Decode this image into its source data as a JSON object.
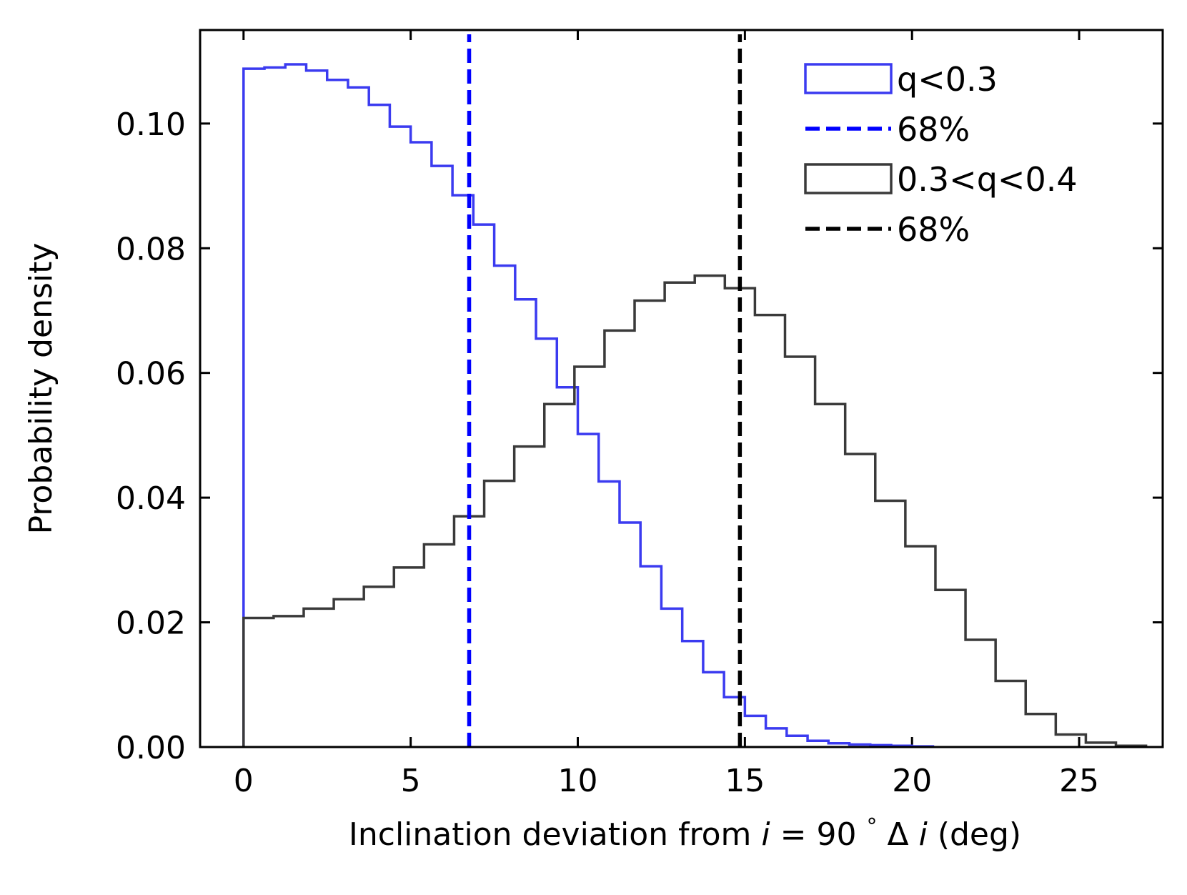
{
  "chart_data": {
    "type": "histogram",
    "title": "",
    "xlabel": {
      "prefix": "Inclination deviation from ",
      "i": "i",
      "eq": " = 90",
      "deg": "°",
      "delta": " Δ",
      "i2": "i",
      "suffix": " (deg)"
    },
    "ylabel": "Probability density",
    "xlim": [
      -1.3,
      27.5
    ],
    "ylim": [
      0,
      0.115
    ],
    "x_ticks": [
      0,
      5,
      10,
      15,
      20,
      25
    ],
    "x_tick_labels": [
      "0",
      "5",
      "10",
      "15",
      "20",
      "25"
    ],
    "y_ticks": [
      0,
      0.02,
      0.04,
      0.06,
      0.08,
      0.1
    ],
    "y_tick_labels": [
      "0.00",
      "0.02",
      "0.04",
      "0.06",
      "0.08",
      "0.10"
    ],
    "series": [
      {
        "name": "q<0.3",
        "color": "#3b3bf0",
        "bin_start": 0,
        "bin_width": 0.625,
        "values": [
          0.1088,
          0.109,
          0.1095,
          0.1085,
          0.107,
          0.1058,
          0.103,
          0.0995,
          0.097,
          0.0932,
          0.0885,
          0.0838,
          0.0772,
          0.0718,
          0.0655,
          0.0577,
          0.0502,
          0.0426,
          0.036,
          0.029,
          0.0222,
          0.017,
          0.012,
          0.008,
          0.005,
          0.003,
          0.0018,
          0.001,
          0.0006,
          0.0004,
          0.0003,
          0.0002,
          0.0001
        ]
      },
      {
        "name": "0.3<q<0.4",
        "color": "#3a3a3a",
        "bin_start": 0,
        "bin_width": 0.9,
        "values": [
          0.0207,
          0.021,
          0.0222,
          0.0237,
          0.0257,
          0.0288,
          0.0325,
          0.037,
          0.0427,
          0.0482,
          0.055,
          0.061,
          0.0668,
          0.0716,
          0.0745,
          0.0756,
          0.0736,
          0.0693,
          0.0626,
          0.055,
          0.047,
          0.0395,
          0.0322,
          0.0252,
          0.0172,
          0.0106,
          0.0053,
          0.002,
          0.0007,
          0.0002
        ]
      }
    ],
    "vlines": [
      {
        "name": "68%",
        "x": 6.75,
        "color": "#0000ff",
        "style": "dashed"
      },
      {
        "name": "68%",
        "x": 14.85,
        "color": "#000000",
        "style": "dashed"
      }
    ],
    "legend": {
      "position": "upper right",
      "entries": [
        {
          "label": "q<0.3",
          "kind": "patch",
          "color": "#3b3bf0"
        },
        {
          "label": "68%",
          "kind": "dashed",
          "color": "#0000ff"
        },
        {
          "label": "0.3<q<0.4",
          "kind": "patch",
          "color": "#3a3a3a"
        },
        {
          "label": "68%",
          "kind": "dashed",
          "color": "#000000"
        }
      ]
    }
  }
}
